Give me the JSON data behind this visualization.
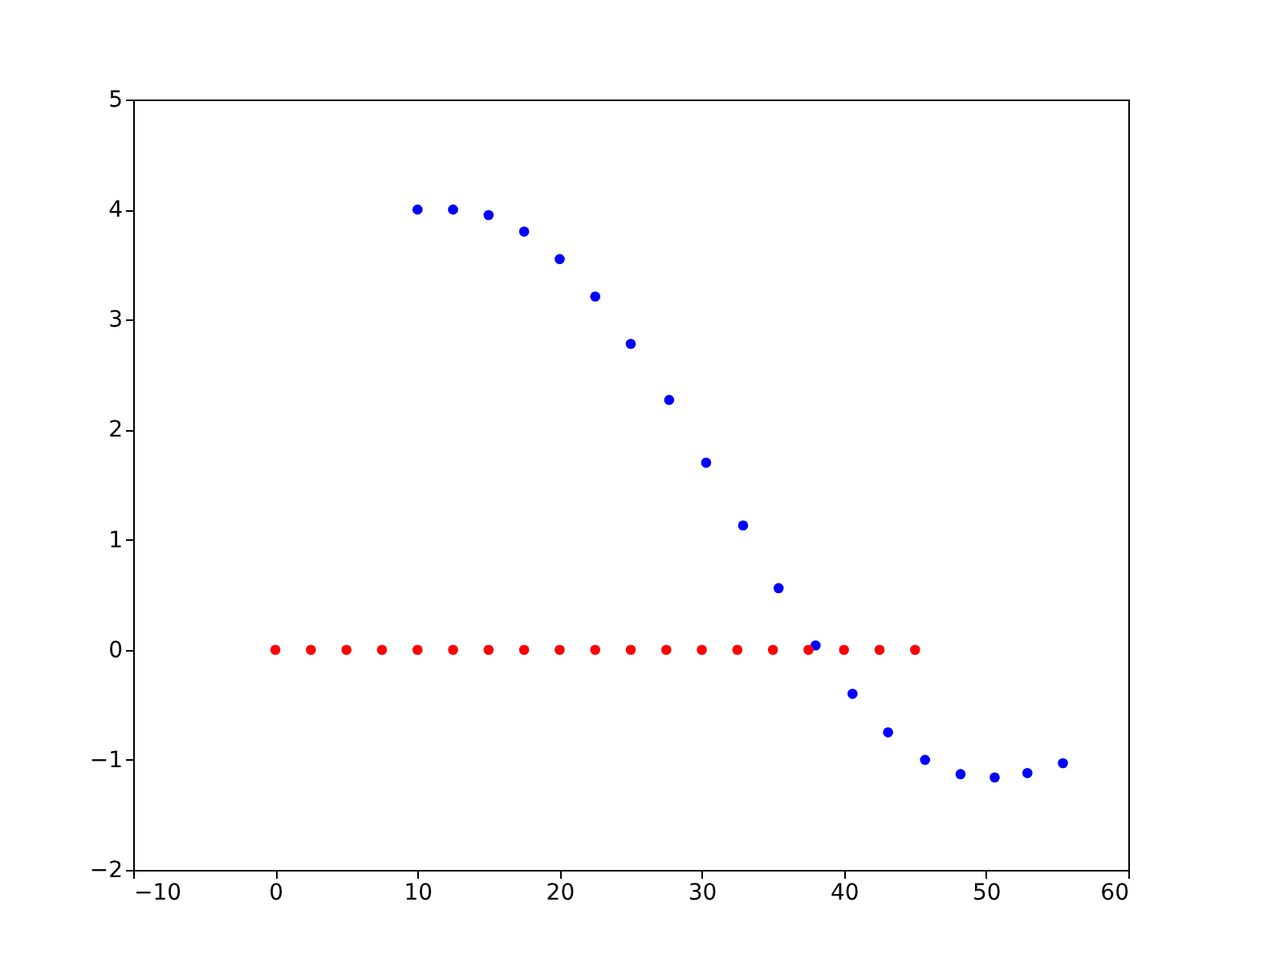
{
  "chart_data": {
    "type": "scatter",
    "xlim": [
      -10,
      60
    ],
    "ylim": [
      -2,
      5
    ],
    "xticks": [
      -10,
      0,
      10,
      20,
      30,
      40,
      50,
      60
    ],
    "yticks": [
      -2,
      -1,
      0,
      1,
      2,
      3,
      4,
      5
    ],
    "grid": false,
    "legend": false,
    "marker": "circle",
    "series": [
      {
        "color": "#0000ff",
        "x": [
          10,
          12.5,
          15,
          17.5,
          20,
          22.5,
          25,
          27.7,
          30.3,
          32.9,
          35.4,
          38,
          40.6,
          43.1,
          45.7,
          48.2,
          50.6,
          52.9,
          55.4
        ],
        "values": [
          4.0,
          4.0,
          3.95,
          3.8,
          3.55,
          3.21,
          2.78,
          2.27,
          1.7,
          1.13,
          0.56,
          0.04,
          -0.4,
          -0.75,
          -1.0,
          -1.13,
          -1.16,
          -1.12,
          -1.03
        ]
      },
      {
        "color": "#ff0000",
        "x": [
          0,
          2.5,
          5,
          7.5,
          10,
          12.5,
          15,
          17.5,
          20,
          22.5,
          25,
          27.5,
          30,
          32.5,
          35,
          37.5,
          40,
          42.5,
          45
        ],
        "values": [
          0,
          0,
          0,
          0,
          0,
          0,
          0,
          0,
          0,
          0,
          0,
          0,
          0,
          0,
          0,
          0,
          0,
          0,
          0
        ]
      }
    ]
  }
}
